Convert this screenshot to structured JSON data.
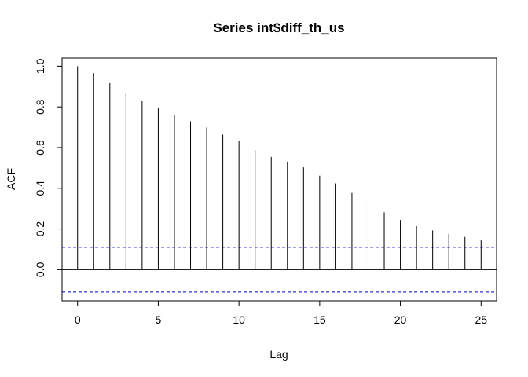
{
  "chart_data": {
    "type": "bar",
    "title": "Series  int$diff_th_us",
    "xlabel": "Lag",
    "ylabel": "ACF",
    "xlim": [
      -0.96,
      25.96
    ],
    "ylim": [
      -0.153,
      1.04
    ],
    "x_ticks": [
      0,
      5,
      10,
      15,
      20,
      25
    ],
    "y_ticks": [
      0.0,
      0.2,
      0.4,
      0.6,
      0.8,
      1.0
    ],
    "x_tick_labels": [
      "0",
      "5",
      "10",
      "15",
      "20",
      "25"
    ],
    "y_tick_labels": [
      "0.0",
      "0.2",
      "0.4",
      "0.6",
      "0.8",
      "1.0"
    ],
    "lags": [
      0,
      1,
      2,
      3,
      4,
      5,
      6,
      7,
      8,
      9,
      10,
      11,
      12,
      13,
      14,
      15,
      16,
      17,
      18,
      19,
      20,
      21,
      22,
      23,
      24,
      25
    ],
    "values": [
      1.0,
      0.966,
      0.917,
      0.869,
      0.829,
      0.794,
      0.759,
      0.729,
      0.699,
      0.664,
      0.631,
      0.587,
      0.554,
      0.531,
      0.503,
      0.462,
      0.424,
      0.377,
      0.331,
      0.282,
      0.244,
      0.214,
      0.193,
      0.175,
      0.161,
      0.144
    ],
    "confidence_bound": 0.11,
    "colors": {
      "bars": "#000000",
      "confidence": "#0000cc",
      "zero": "#000000"
    }
  }
}
